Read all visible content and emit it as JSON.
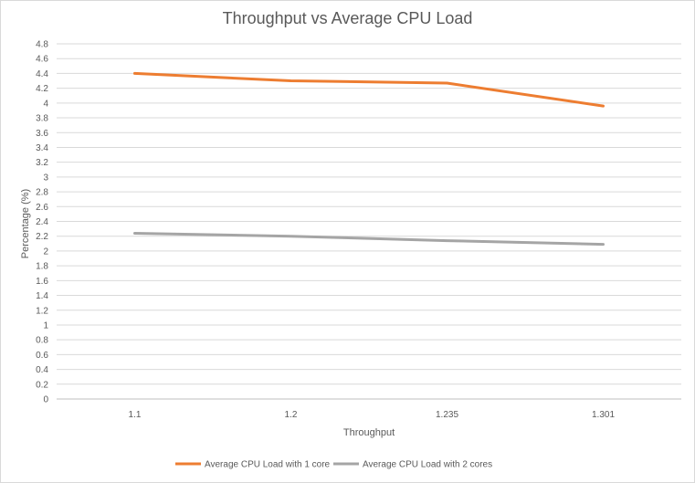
{
  "chart_data": {
    "type": "line",
    "title": "Throughput vs Average CPU Load",
    "xlabel": "Throughput",
    "ylabel": "Percentage (%)",
    "categories": [
      "1.1",
      "1.2",
      "1.235",
      "1.301"
    ],
    "ylim": [
      0,
      4.8
    ],
    "ytick_step": 0.2,
    "grid": true,
    "legend_position": "bottom",
    "series": [
      {
        "name": "Average CPU Load with 1 core",
        "color": "#ed7d31",
        "values": [
          4.4,
          4.3,
          4.27,
          3.96
        ]
      },
      {
        "name": "Average CPU Load with 2 cores",
        "color": "#a5a5a5",
        "values": [
          2.24,
          2.2,
          2.14,
          2.09
        ]
      }
    ]
  }
}
